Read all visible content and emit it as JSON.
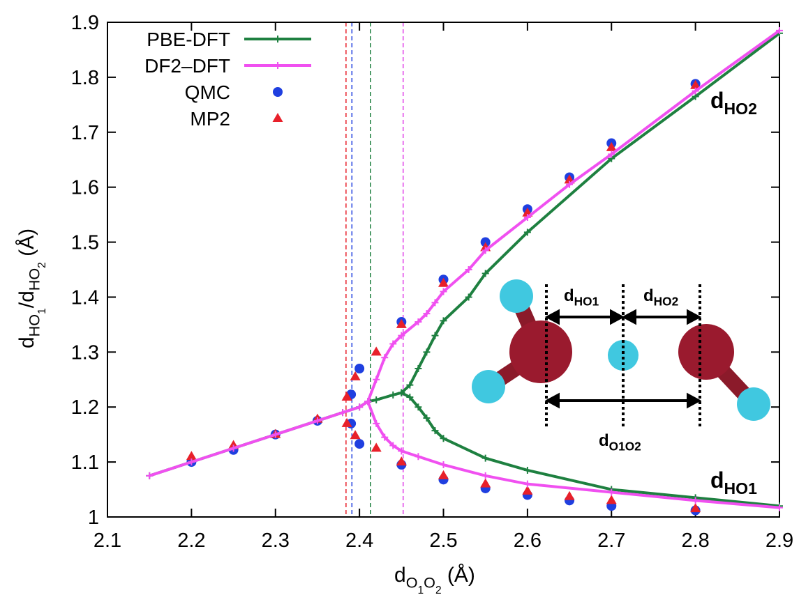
{
  "chart_data": {
    "type": "line",
    "xlabel": [
      {
        "text": "d",
        "level": 0
      },
      {
        "text": "O",
        "level": 1
      },
      {
        "text": "1",
        "level": 2
      },
      {
        "text": "O",
        "level": 1
      },
      {
        "text": "2",
        "level": 2
      },
      {
        "text": " (Å)",
        "level": 0
      }
    ],
    "ylabel": [
      {
        "text": "d",
        "level": 0
      },
      {
        "text": "HO",
        "level": 1
      },
      {
        "text": "1",
        "level": 2
      },
      {
        "text": "/d",
        "level": 0
      },
      {
        "text": "HO",
        "level": 1
      },
      {
        "text": "2",
        "level": 2
      },
      {
        "text": " (Å)",
        "level": 0
      }
    ],
    "xlim": [
      2.1,
      2.9
    ],
    "xticks": [
      2.1,
      2.2,
      2.3,
      2.4,
      2.5,
      2.6,
      2.7,
      2.8,
      2.9
    ],
    "ylim": [
      1,
      1.9
    ],
    "yticks": [
      1,
      1.1,
      1.2,
      1.3,
      1.4,
      1.5,
      1.6,
      1.7,
      1.8,
      1.9
    ],
    "legend": "top-left",
    "vlines": [
      {
        "x": 2.384,
        "color": "#e8202a"
      },
      {
        "x": 2.391,
        "color": "#1f3fe0"
      },
      {
        "x": 2.413,
        "color": "#1e8040"
      },
      {
        "x": 2.452,
        "color": "#e040e8"
      }
    ],
    "series": [
      {
        "name": "PBE-DFT",
        "kind": "line",
        "color": "#1e8040",
        "branches": [
          {
            "x": [
              2.15,
              2.2,
              2.25,
              2.3,
              2.35,
              2.38,
              2.4,
              2.41
            ],
            "values": [
              1.075,
              1.1,
              1.125,
              1.15,
              1.175,
              1.19,
              1.2,
              1.21
            ]
          },
          {
            "x": [
              2.41,
              2.42,
              2.44,
              2.45,
              2.46,
              2.47,
              2.48,
              2.49,
              2.5,
              2.53,
              2.55,
              2.6,
              2.7,
              2.8,
              2.9
            ],
            "values": [
              1.21,
              1.213,
              1.222,
              1.226,
              1.24,
              1.27,
              1.3,
              1.33,
              1.357,
              1.4,
              1.443,
              1.518,
              1.652,
              1.765,
              1.88
            ]
          },
          {
            "x": [
              2.45,
              2.46,
              2.47,
              2.48,
              2.49,
              2.5,
              2.55,
              2.6,
              2.7,
              2.8,
              2.9
            ],
            "values": [
              1.226,
              1.218,
              1.2,
              1.18,
              1.157,
              1.143,
              1.107,
              1.085,
              1.05,
              1.035,
              1.02
            ]
          }
        ]
      },
      {
        "name": "DF2–DFT",
        "kind": "line",
        "color": "#f050f0",
        "branches": [
          {
            "x": [
              2.15,
              2.2,
              2.25,
              2.3,
              2.35,
              2.38,
              2.4,
              2.41
            ],
            "values": [
              1.075,
              1.1,
              1.125,
              1.15,
              1.175,
              1.19,
              1.2,
              1.21
            ]
          },
          {
            "x": [
              2.41,
              2.42,
              2.43,
              2.44,
              2.45,
              2.47,
              2.48,
              2.49,
              2.5,
              2.53,
              2.55,
              2.6,
              2.65,
              2.7,
              2.8,
              2.9
            ],
            "values": [
              1.21,
              1.25,
              1.29,
              1.315,
              1.33,
              1.355,
              1.37,
              1.39,
              1.41,
              1.45,
              1.485,
              1.545,
              1.605,
              1.66,
              1.775,
              1.885
            ]
          },
          {
            "x": [
              2.41,
              2.42,
              2.43,
              2.44,
              2.45,
              2.47,
              2.5,
              2.55,
              2.6,
              2.7,
              2.8,
              2.9
            ],
            "values": [
              1.21,
              1.17,
              1.145,
              1.13,
              1.12,
              1.11,
              1.095,
              1.075,
              1.06,
              1.045,
              1.03,
              1.017
            ]
          }
        ]
      },
      {
        "name": "QMC",
        "kind": "circle",
        "color": "#1f3fe0",
        "x": [
          2.2,
          2.25,
          2.3,
          2.35,
          2.39,
          2.39,
          2.4,
          2.4,
          2.45,
          2.45,
          2.5,
          2.5,
          2.55,
          2.55,
          2.6,
          2.6,
          2.65,
          2.65,
          2.7,
          2.7,
          2.8,
          2.8
        ],
        "values": [
          1.1,
          1.122,
          1.15,
          1.175,
          1.223,
          1.17,
          1.27,
          1.133,
          1.355,
          1.095,
          1.432,
          1.068,
          1.5,
          1.052,
          1.56,
          1.04,
          1.618,
          1.03,
          1.68,
          1.02,
          1.788,
          1.012
        ]
      },
      {
        "name": "MP2",
        "kind": "triangle",
        "color": "#e8202a",
        "x": [
          2.2,
          2.25,
          2.3,
          2.35,
          2.385,
          2.385,
          2.395,
          2.395,
          2.42,
          2.42,
          2.45,
          2.45,
          2.5,
          2.5,
          2.55,
          2.55,
          2.6,
          2.6,
          2.65,
          2.65,
          2.7,
          2.7,
          2.8,
          2.8
        ],
        "values": [
          1.11,
          1.13,
          1.15,
          1.178,
          1.218,
          1.17,
          1.255,
          1.148,
          1.3,
          1.125,
          1.35,
          1.1,
          1.425,
          1.075,
          1.49,
          1.06,
          1.553,
          1.047,
          1.613,
          1.037,
          1.672,
          1.03,
          1.785,
          1.015
        ]
      }
    ],
    "annotations": [
      [
        {
          "text": "d",
          "level": 0
        },
        {
          "text": "HO2",
          "level": 1
        }
      ],
      [
        {
          "text": "d",
          "level": 0
        },
        {
          "text": "HO1",
          "level": 1
        }
      ],
      [
        {
          "text": "d",
          "level": 0
        },
        {
          "text": "HO1",
          "level": 1
        }
      ],
      [
        {
          "text": "d",
          "level": 0
        },
        {
          "text": "HO2",
          "level": 1
        }
      ],
      [
        {
          "text": "d",
          "level": 0
        },
        {
          "text": "O1O2",
          "level": 1
        }
      ]
    ]
  }
}
